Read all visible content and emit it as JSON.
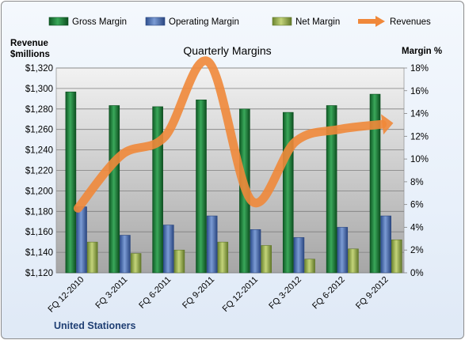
{
  "chart_data": {
    "type": "bar",
    "title": "Quarterly Margins",
    "company": "United Stationers",
    "y_left_label_line1": "Revenue",
    "y_left_label_line2": "$millions",
    "y_right_label": "Margin %",
    "categories": [
      "FQ 12-2010",
      "FQ 3-2011",
      "FQ 6-2011",
      "FQ 9-2011",
      "FQ 12-2011",
      "FQ 3-2012",
      "FQ 6-2012",
      "FQ 9-2012"
    ],
    "y_left_lim": [
      1120,
      1320
    ],
    "y_left_ticks": [
      "$1,120",
      "$1,140",
      "$1,160",
      "$1,180",
      "$1,200",
      "$1,220",
      "$1,240",
      "$1,260",
      "$1,280",
      "$1,300",
      "$1,320"
    ],
    "y_right_lim": [
      0,
      18
    ],
    "y_right_ticks": [
      "0%",
      "2%",
      "4%",
      "6%",
      "8%",
      "10%",
      "12%",
      "14%",
      "16%",
      "18%"
    ],
    "series": [
      {
        "name": "Gross Margin",
        "axis": "right",
        "kind": "bar",
        "color": "#1e7a3a",
        "values": [
          15.9,
          14.7,
          14.6,
          15.2,
          14.4,
          14.1,
          14.7,
          15.7
        ]
      },
      {
        "name": "Operating Margin",
        "axis": "right",
        "kind": "bar",
        "color": "#4a6eb0",
        "values": [
          5.8,
          3.3,
          4.2,
          5.0,
          3.8,
          3.1,
          4.0,
          5.0
        ]
      },
      {
        "name": "Net Margin",
        "axis": "right",
        "kind": "bar",
        "color": "#98b04a",
        "values": [
          2.7,
          1.7,
          2.0,
          2.7,
          2.4,
          1.2,
          2.1,
          2.9
        ]
      },
      {
        "name": "Revenues",
        "axis": "left",
        "kind": "line",
        "color": "#f0883a",
        "values": [
          1183,
          1235,
          1253,
          1326,
          1190,
          1248,
          1260,
          1265
        ]
      }
    ],
    "grid": true,
    "legend": "top"
  }
}
